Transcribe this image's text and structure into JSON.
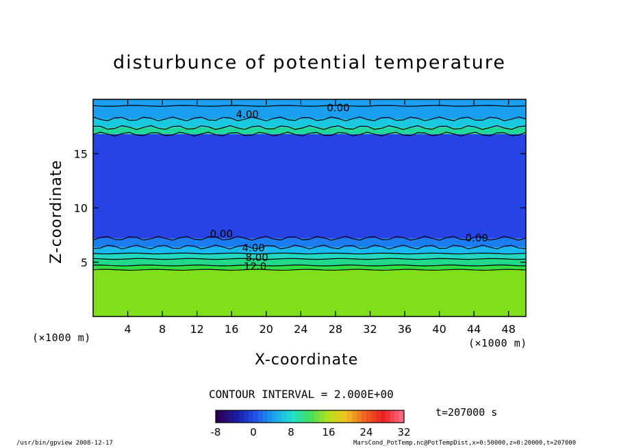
{
  "chart_data": {
    "type": "heatmap",
    "title": "disturbunce of potential temperature",
    "xlabel": "X-coordinate",
    "ylabel": "Z-coordinate",
    "x_unit_left": "(×1000 m)",
    "x_unit_right": "(×1000 m)",
    "xlim": [
      0,
      50
    ],
    "ylim": [
      0,
      20
    ],
    "xticks": [
      4,
      8,
      12,
      16,
      20,
      24,
      28,
      32,
      36,
      40,
      44,
      48
    ],
    "yticks": [
      5,
      10,
      15
    ],
    "contour_labels": [
      "0.00",
      "4.00",
      "0.00",
      "0.00",
      "4.00",
      "8.00",
      "12.0"
    ],
    "contour_interval": "CONTOUR INTERVAL = 2.000E+00",
    "colorbar_ticks": [
      -8,
      0,
      8,
      16,
      24,
      32
    ],
    "colorbar_range": [
      -8,
      32
    ],
    "time_label": "t=207000 s",
    "layers": [
      {
        "z_from": 0,
        "z_to": 4.3,
        "value": 14,
        "color": "#7fe01a"
      },
      {
        "z_from": 4.3,
        "z_to": 4.7,
        "value": 12,
        "color": "#33dd44"
      },
      {
        "z_from": 4.7,
        "z_to": 5.3,
        "value": 10,
        "color": "#22d88a"
      },
      {
        "z_from": 5.3,
        "z_to": 5.8,
        "value": 8,
        "color": "#22d8c0"
      },
      {
        "z_from": 5.8,
        "z_to": 6.4,
        "value": 4,
        "color": "#1ab8f0"
      },
      {
        "z_from": 6.4,
        "z_to": 7.2,
        "value": 0,
        "color": "#1a7ef0"
      },
      {
        "z_from": 7.2,
        "z_to": 16.8,
        "value": -4,
        "color": "#2644e6"
      },
      {
        "z_from": 16.8,
        "z_to": 17.4,
        "value": 10,
        "color": "#1fd89a"
      },
      {
        "z_from": 17.4,
        "z_to": 18.2,
        "value": 6,
        "color": "#1ac8e0"
      },
      {
        "z_from": 18.2,
        "z_to": 20,
        "value": 2,
        "color": "#1a9ef0"
      }
    ]
  },
  "colors": {
    "lime": "#7fe01a",
    "deep_blue": "#2644e6",
    "cyan": "#1ac8e0"
  },
  "footer": {
    "left": "/usr/bin/gpview   2008-12-17",
    "right": "MarsCond_PotTemp.nc@PotTempDist,x=0:50000,z=0:20000,t=207000"
  }
}
